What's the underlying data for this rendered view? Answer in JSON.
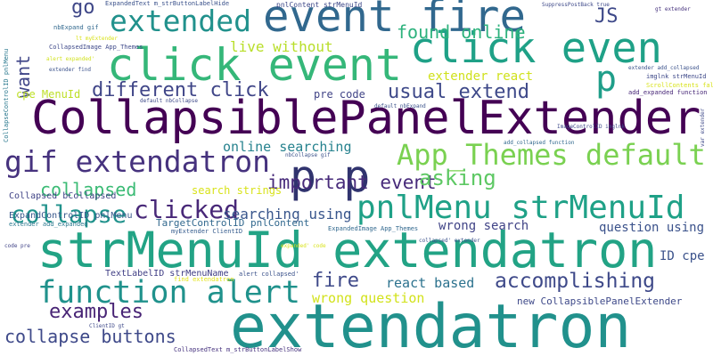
{
  "words": [
    "extendatron",
    "strMenuId extendatron",
    "CollapsiblePanelExtender",
    "click event",
    "event fire",
    "extended",
    "click even",
    "p",
    "p p",
    "App_Themes default",
    "gif extendatron",
    "pnlMenu strMenuId",
    "function alert",
    "collapse",
    "clicked",
    "collapsed",
    "different click",
    "usual extend",
    "important event",
    "asking",
    "searching using",
    "search strings",
    "online searching",
    "found online",
    "live without",
    "JS",
    "go",
    "want",
    "extender react",
    "pre code",
    "ID cpe",
    "cpe MenuId",
    "fire",
    "react based",
    "accomplishing",
    "wrong question",
    "wrong search",
    "question using",
    "examples",
    "collapse buttons",
    "new CollapsiblePanelExtender",
    "TargetControlID pnlContent",
    "ExpandControlID pnlMenu",
    "Collapsed bCollapsed",
    "extender add_expanded",
    "TextLabelID strMenuName",
    "alert collapsed'",
    "find extendatron",
    "myExtender ClientID",
    "ExpandedImage App_Themes",
    "collapsed' extender",
    "ClientID gt",
    "CollapsedText m_strButtonLabelShow",
    "code pre",
    "default nbExpand",
    "ImageControlID imglnk",
    "nbCollapse gif",
    "default nbCollapse",
    "add_collapsed function",
    "add_expanded function",
    "var extender",
    "imglnk strMenuId",
    "ScrollContents false",
    "extender add_collapsed",
    "gt extender",
    "SuppressPostBack true",
    "ExpandedText m_strButtonLabelHide",
    "pnlContent strMenuId",
    "nbExpand gif",
    "lt myExtender",
    "CollapsedImage App_Themes",
    "alert expanded'",
    "extender find",
    "CollapseControlID pnlMenu",
    "expanded' code"
  ]
}
